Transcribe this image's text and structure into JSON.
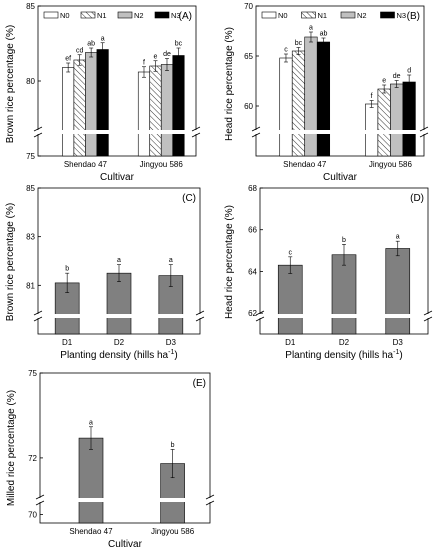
{
  "chart_data": [
    {
      "id": "A",
      "type": "bar",
      "panel_label": "(A)",
      "xlabel": "Cultivar",
      "ylabel": "Brown rice percentage (%)",
      "ylim": [
        75,
        85
      ],
      "yticks": [
        75,
        80,
        85
      ],
      "axis_break": true,
      "categories": [
        "Shendao 47",
        "Jingyou 586"
      ],
      "legend_position": "top-left",
      "series": [
        {
          "name": "N0",
          "pattern": "none",
          "color": "#ffffff",
          "values": [
            80.9,
            80.6
          ],
          "errors": [
            0.3,
            0.35
          ],
          "letters": [
            "ef",
            "f"
          ]
        },
        {
          "name": "N1",
          "pattern": "hatch",
          "color": "#ffffff",
          "values": [
            81.4,
            81.0
          ],
          "errors": [
            0.35,
            0.35
          ],
          "letters": [
            "cd",
            "e"
          ]
        },
        {
          "name": "N2",
          "pattern": "none",
          "color": "#c0c0c0",
          "values": [
            81.9,
            81.1
          ],
          "errors": [
            0.3,
            0.4
          ],
          "letters": [
            "ab",
            "de"
          ]
        },
        {
          "name": "N3",
          "pattern": "none",
          "color": "#000000",
          "values": [
            82.1,
            81.7
          ],
          "errors": [
            0.45,
            0.5
          ],
          "letters": [
            "a",
            "bc"
          ]
        }
      ]
    },
    {
      "id": "B",
      "type": "bar",
      "panel_label": "(B)",
      "xlabel": "Cultivar",
      "ylabel": "Head rice percentage (%)",
      "ylim": [
        55,
        70
      ],
      "yticks": [
        60,
        65,
        70
      ],
      "axis_break": true,
      "categories": [
        "Shendao 47",
        "Jingyou 586"
      ],
      "legend_position": "top-left",
      "series": [
        {
          "name": "N0",
          "pattern": "none",
          "color": "#ffffff",
          "values": [
            64.8,
            60.2
          ],
          "errors": [
            0.4,
            0.35
          ],
          "letters": [
            "c",
            "f"
          ]
        },
        {
          "name": "N1",
          "pattern": "hatch",
          "color": "#ffffff",
          "values": [
            65.5,
            61.7
          ],
          "errors": [
            0.35,
            0.4
          ],
          "letters": [
            "bc",
            "e"
          ]
        },
        {
          "name": "N2",
          "pattern": "none",
          "color": "#c0c0c0",
          "values": [
            66.9,
            62.2
          ],
          "errors": [
            0.5,
            0.35
          ],
          "letters": [
            "a",
            "de"
          ]
        },
        {
          "name": "N3",
          "pattern": "none",
          "color": "#000000",
          "values": [
            66.4,
            62.4
          ],
          "errors": [
            0.4,
            0.7
          ],
          "letters": [
            "ab",
            "d"
          ]
        }
      ]
    },
    {
      "id": "C",
      "type": "bar",
      "panel_label": "(C)",
      "xlabel": "Planting density (hills ha",
      "xlabel_sup": "-1",
      "xlabel_end": ")",
      "ylabel": "Brown rice percentage (%)",
      "ylim": [
        79,
        85
      ],
      "yticks": [
        81,
        83,
        85
      ],
      "axis_break": true,
      "categories": [
        "D1",
        "D2",
        "D3"
      ],
      "series": [
        {
          "name": "",
          "color": "#808080",
          "values": [
            81.1,
            81.5,
            81.4
          ],
          "errors": [
            0.4,
            0.35,
            0.45
          ],
          "letters": [
            "b",
            "a",
            "a"
          ]
        }
      ]
    },
    {
      "id": "D",
      "type": "bar",
      "panel_label": "(D)",
      "xlabel": "Planting density (hills ha",
      "xlabel_sup": "-1",
      "xlabel_end": ")",
      "ylabel": "Head rice percentage (%)",
      "ylim": [
        61,
        68
      ],
      "yticks": [
        62,
        64,
        66,
        68
      ],
      "axis_break": true,
      "categories": [
        "D1",
        "D2",
        "D3"
      ],
      "series": [
        {
          "name": "",
          "color": "#808080",
          "values": [
            64.3,
            64.8,
            65.1
          ],
          "errors": [
            0.4,
            0.5,
            0.35
          ],
          "letters": [
            "c",
            "b",
            "a"
          ]
        }
      ]
    },
    {
      "id": "E",
      "type": "bar",
      "panel_label": "(E)",
      "xlabel": "Cultivar",
      "ylabel": "Milled rice percentage (%)",
      "ylim": [
        69.7,
        75
      ],
      "yticks": [
        70,
        72,
        75
      ],
      "axis_break": true,
      "categories": [
        "Shendao 47",
        "Jingyou 586"
      ],
      "series": [
        {
          "name": "",
          "color": "#808080",
          "values": [
            72.7,
            71.8
          ],
          "errors": [
            0.4,
            0.5
          ],
          "letters": [
            "a",
            "b"
          ]
        }
      ]
    }
  ]
}
